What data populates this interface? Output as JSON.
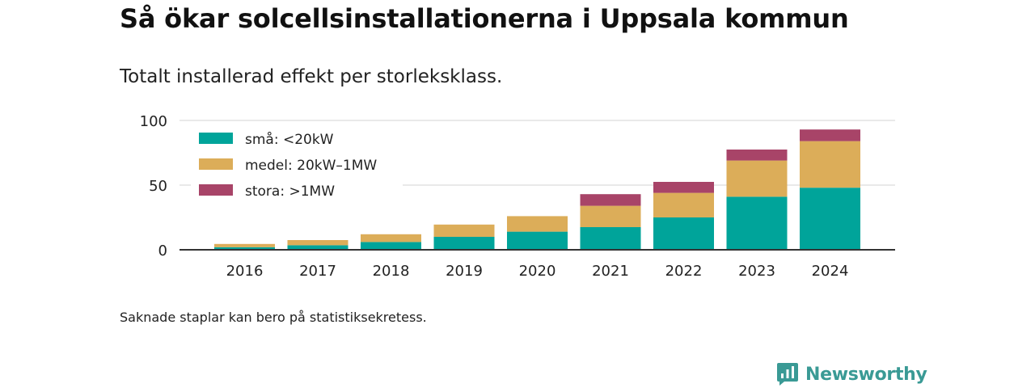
{
  "title": "Så ökar solcellsinstallationerna i Uppsala kommun",
  "subtitle": "Totalt installerad effekt per storleksklass.",
  "note": "Saknade staplar kan bero på statistiksekretess.",
  "brand": "Newsworthy",
  "colors": {
    "sma": "#00a49a",
    "medel": "#dcad59",
    "stora": "#a84468",
    "brand": "#3a9a95"
  },
  "chart_data": {
    "type": "bar",
    "stacked": true,
    "categories": [
      "2016",
      "2017",
      "2018",
      "2019",
      "2020",
      "2021",
      "2022",
      "2023",
      "2024"
    ],
    "series": [
      {
        "name": "små: <20kW",
        "color": "#00a49a",
        "values": [
          2,
          3.5,
          6,
          10,
          14,
          17.5,
          25,
          41,
          48
        ]
      },
      {
        "name": "medel: 20kW–1MW",
        "color": "#dcad59",
        "values": [
          2.5,
          4,
          6,
          9.5,
          12,
          16.5,
          19,
          28,
          36
        ]
      },
      {
        "name": "stora: >1MW",
        "color": "#a84468",
        "values": [
          0,
          0,
          0,
          0,
          0,
          9,
          8.5,
          8.5,
          9
        ]
      }
    ],
    "yticks": [
      0,
      50,
      100
    ],
    "ylim": [
      0,
      100
    ],
    "grid": true,
    "legend_position": "top-left"
  }
}
